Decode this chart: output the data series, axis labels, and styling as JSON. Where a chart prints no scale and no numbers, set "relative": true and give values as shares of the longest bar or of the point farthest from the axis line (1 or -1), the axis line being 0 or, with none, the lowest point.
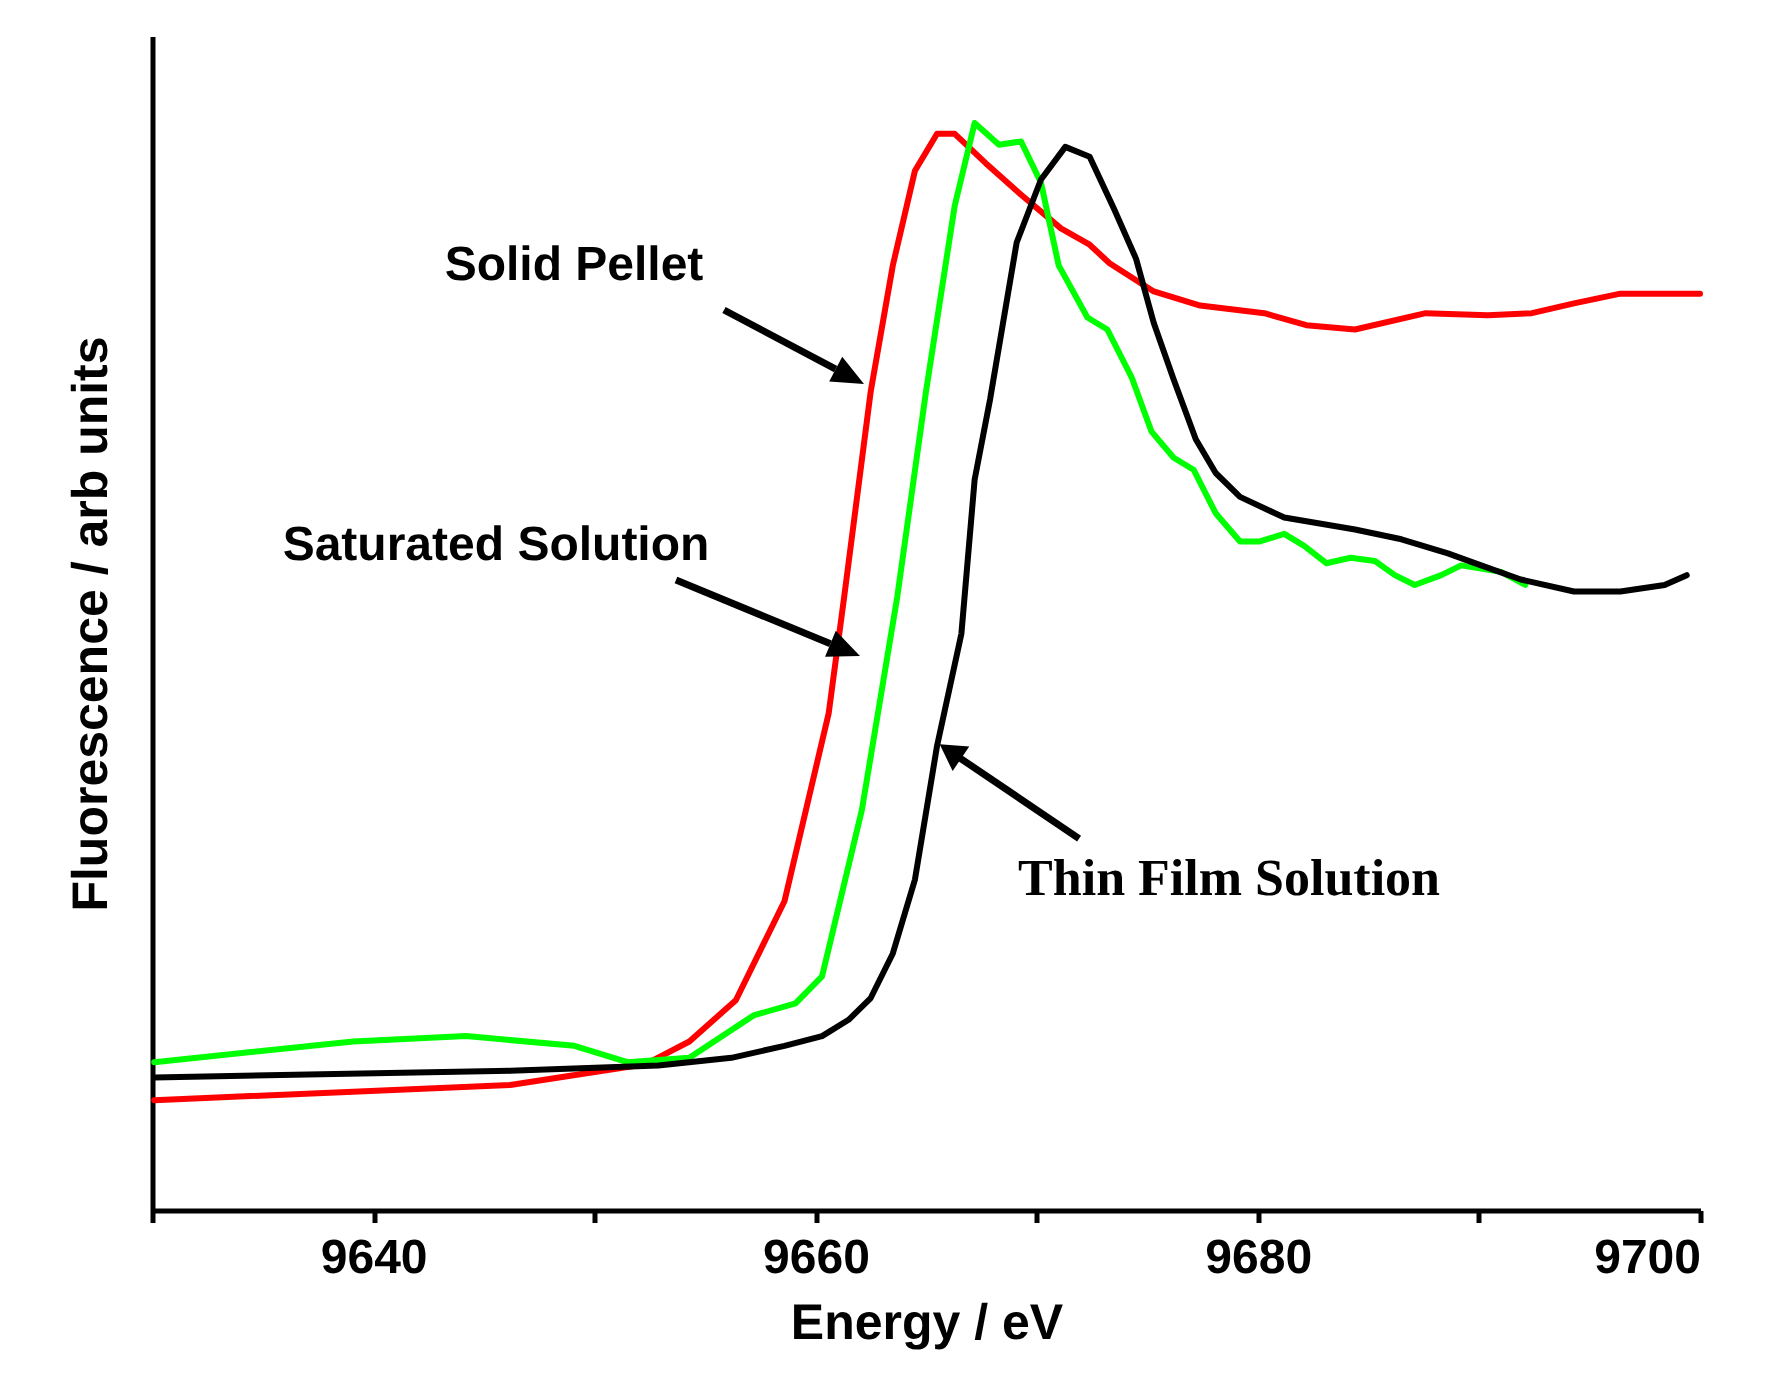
{
  "chart_data": {
    "type": "line",
    "relative": true,
    "xlabel": "Energy / eV",
    "ylabel": "Fluorescence / arb units",
    "xlim": [
      9630,
      9700
    ],
    "xticks": [
      {
        "value": 9630,
        "label": null
      },
      9640,
      {
        "value": 9650,
        "label": null
      },
      9660,
      {
        "value": 9670,
        "label": null
      },
      9680,
      {
        "value": 9690,
        "label": null
      },
      9700
    ],
    "annotations": [
      "Solid Pellet",
      "Saturated Solution",
      {
        "text": "Thin Film Solution",
        "x": 9665.5,
        "y": 0.43
      }
    ],
    "series": [
      {
        "color": "#ff0000",
        "x": [
          9630.1,
          9646.2,
          9652.3,
          9654.3,
          9656.4,
          9658.6,
          9660.6,
          9661.3,
          9662.5,
          9663.5,
          9664.5,
          9665.5,
          9666.3,
          9667.7,
          9669.3,
          9671.1,
          9672.4,
          9673.3,
          9675.3,
          9677.4,
          9680.3,
          9682.2,
          9684.4,
          9687.6,
          9690.4,
          9692.4,
          9694.3,
          9696.4,
          9700
        ],
        "values": [
          0.101,
          0.115,
          0.134,
          0.155,
          0.193,
          0.284,
          0.457,
          0.564,
          0.753,
          0.869,
          0.956,
          0.99,
          0.99,
          0.963,
          0.934,
          0.903,
          0.888,
          0.871,
          0.845,
          0.832,
          0.825,
          0.814,
          0.81,
          0.825,
          0.823,
          0.825,
          0.834,
          0.843,
          0.843
        ]
      },
      {
        "color": "#00ff00",
        "x": [
          9630.1,
          9639.1,
          9644.2,
          9649.1,
          9651.5,
          9654.3,
          9657.2,
          9659.1,
          9660.3,
          9662.1,
          9663.7,
          9665.0,
          9666.3,
          9667.2,
          9668.3,
          9669.3,
          9670.2,
          9671.0,
          9672.3,
          9673.2,
          9674.3,
          9675.2,
          9676.2,
          9677.1,
          9678.1,
          9679.2,
          9680.1,
          9681.2,
          9682.1,
          9683.1,
          9684.2,
          9685.3,
          9686.2,
          9687.1,
          9688.3,
          9689.2,
          9691.0,
          9692.1
        ],
        "values": [
          0.136,
          0.155,
          0.16,
          0.151,
          0.136,
          0.14,
          0.179,
          0.19,
          0.215,
          0.368,
          0.564,
          0.753,
          0.924,
          1,
          0.98,
          0.983,
          0.945,
          0.869,
          0.821,
          0.81,
          0.766,
          0.716,
          0.692,
          0.681,
          0.641,
          0.615,
          0.615,
          0.622,
          0.611,
          0.595,
          0.6,
          0.597,
          0.584,
          0.575,
          0.584,
          0.593,
          0.587,
          0.575
        ]
      },
      {
        "color": "#000000",
        "x": [
          9630.1,
          9646.2,
          9652.9,
          9656.2,
          9658.6,
          9660.3,
          9661.5,
          9662.5,
          9663.5,
          9664.5,
          9665.5,
          9666.6,
          9667.2,
          9667.9,
          9669.1,
          9670.2,
          9671.3,
          9672.4,
          9673.5,
          9674.5,
          9675.3,
          9676.2,
          9677.2,
          9678.1,
          9679.2,
          9681.2,
          9684.4,
          9686.5,
          9688.6,
          9690.1,
          9691.9,
          9694.3,
          9696.4,
          9698.4,
          9699.4
        ],
        "values": [
          0.122,
          0.128,
          0.133,
          0.14,
          0.151,
          0.16,
          0.175,
          0.195,
          0.236,
          0.304,
          0.427,
          0.53,
          0.672,
          0.746,
          0.89,
          0.948,
          0.978,
          0.969,
          0.921,
          0.875,
          0.816,
          0.764,
          0.709,
          0.678,
          0.656,
          0.637,
          0.626,
          0.617,
          0.604,
          0.593,
          0.58,
          0.569,
          0.569,
          0.575,
          0.584
        ]
      }
    ]
  }
}
